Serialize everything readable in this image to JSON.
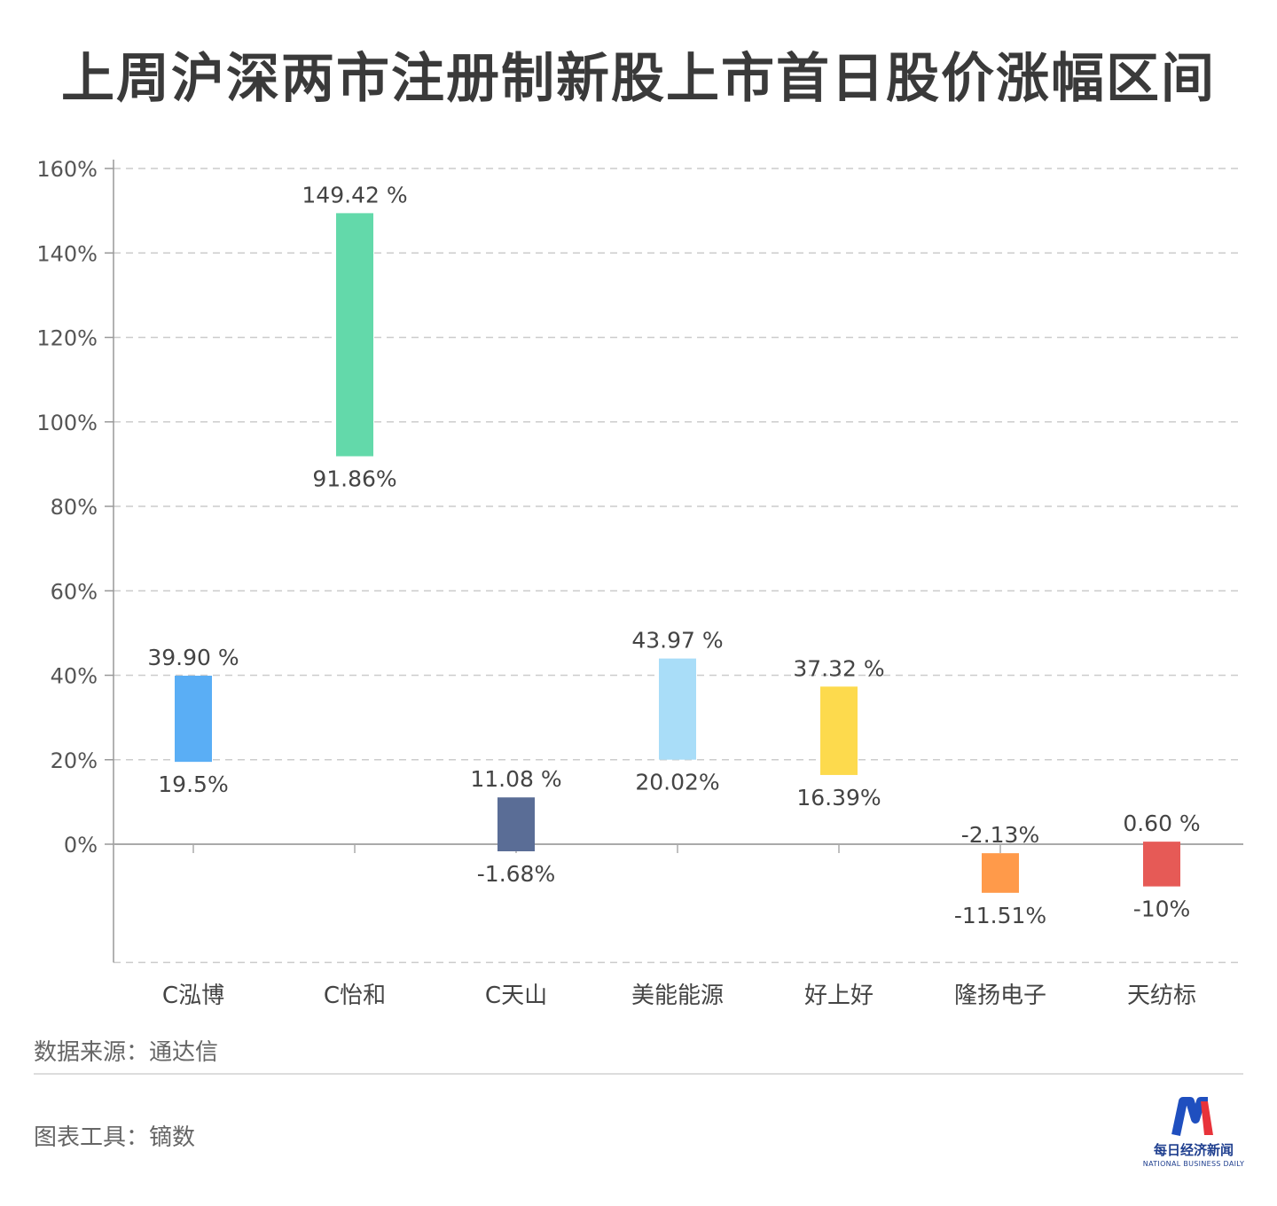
{
  "title": "上周沪深两市注册制新股上市首日股价涨幅区间",
  "chart_data": {
    "type": "bar",
    "subtype": "floating-range",
    "categories": [
      "C泓博",
      "C怡和",
      "C天山",
      "美能能源",
      "好上好",
      "隆扬电子",
      "天纺标"
    ],
    "series": [
      {
        "values_high": [
          39.9,
          149.42,
          11.08,
          43.97,
          37.32,
          -2.13,
          0.6
        ],
        "values_low": [
          19.5,
          91.86,
          -1.68,
          20.02,
          16.39,
          -11.51,
          -10
        ],
        "labels_high": [
          "39.90 %",
          "149.42 %",
          "11.08 %",
          "43.97 %",
          "37.32 %",
          "-2.13%",
          "0.60 %"
        ],
        "labels_low": [
          "19.5%",
          "91.86%",
          "-1.68%",
          "20.02%",
          "16.39%",
          "-11.51%",
          "-10%"
        ]
      }
    ],
    "colors": [
      "#5aaef5",
      "#63d9aa",
      "#5a6d96",
      "#a9ddf8",
      "#fdda4d",
      "#ff9a4a",
      "#e65a56"
    ],
    "y_ticks": [
      0,
      20,
      40,
      60,
      80,
      100,
      120,
      140,
      160
    ],
    "y_tick_labels": [
      "0%",
      "20%",
      "40%",
      "60%",
      "80%",
      "100%",
      "120%",
      "140%",
      "160%"
    ],
    "ylim": [
      -28,
      160
    ],
    "grid": true,
    "xlabel": "",
    "ylabel": ""
  },
  "footer": {
    "source": "数据来源：通达信",
    "tool": "图表工具：镝数"
  },
  "logo": {
    "name_cn": "每日经济新闻",
    "name_en": "NATIONAL BUSINESS DAILY"
  }
}
